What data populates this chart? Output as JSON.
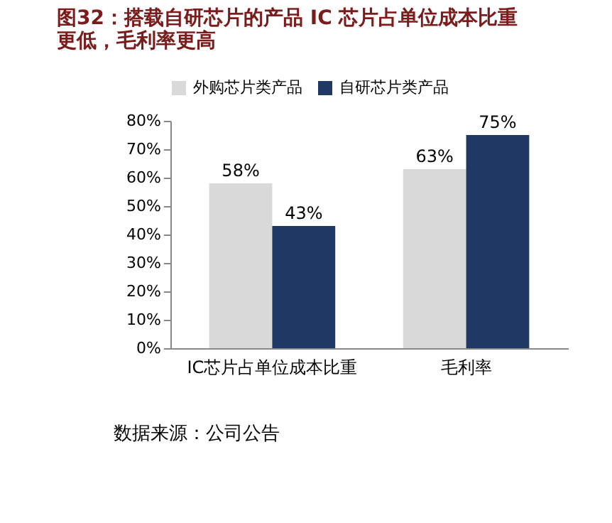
{
  "chart_data": {
    "type": "bar",
    "title": "图32：搭载自研芯片的产品 IC 芯片占单位成本比重更低，毛利率更高",
    "categories": [
      "IC芯片占单位成本比重",
      "毛利率"
    ],
    "series": [
      {
        "name": "外购芯片类产品",
        "color": "#d9d9d9",
        "values": [
          58,
          63
        ],
        "value_labels": [
          "58%",
          "63%"
        ]
      },
      {
        "name": "自研芯片类产品",
        "color": "#1f3864",
        "values": [
          43,
          75
        ],
        "value_labels": [
          "43%",
          "75%"
        ]
      }
    ],
    "ylim": [
      0,
      80
    ],
    "yticks": [
      {
        "value": 0,
        "label": "0%"
      },
      {
        "value": 10,
        "label": "10%"
      },
      {
        "value": 20,
        "label": "20%"
      },
      {
        "value": 30,
        "label": "30%"
      },
      {
        "value": 40,
        "label": "40%"
      },
      {
        "value": 50,
        "label": "50%"
      },
      {
        "value": 60,
        "label": "60%"
      },
      {
        "value": 70,
        "label": "70%"
      },
      {
        "value": 80,
        "label": "80%"
      }
    ],
    "legend": "top",
    "annotations": [
      "数据来源：公司公告"
    ]
  }
}
